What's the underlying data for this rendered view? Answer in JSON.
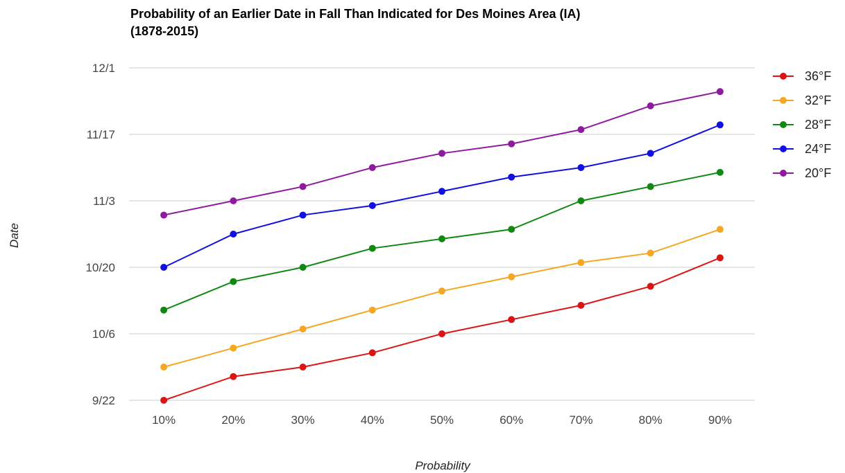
{
  "chart_data": {
    "type": "line",
    "title": "Probability of an Earlier Date in Fall Than Indicated for Des Moines Area (IA)",
    "subtitle": "(1878-2015)",
    "xlabel": "Probability",
    "ylabel": "Date",
    "categories": [
      "10%",
      "20%",
      "30%",
      "40%",
      "50%",
      "60%",
      "70%",
      "80%",
      "90%"
    ],
    "y_ticks": [
      "9/22",
      "10/6",
      "10/20",
      "11/3",
      "11/17",
      "12/1"
    ],
    "ylim": [
      "9/22",
      "12/1"
    ],
    "grid": true,
    "legend_position": "right",
    "series": [
      {
        "name": "36°F",
        "color": "#dc1414",
        "values": [
          "9/22",
          "9/27",
          "9/29",
          "10/2",
          "10/6",
          "10/9",
          "10/12",
          "10/16",
          "10/22"
        ]
      },
      {
        "name": "32°F",
        "color": "#f5a623",
        "values": [
          "9/29",
          "10/3",
          "10/7",
          "10/11",
          "10/15",
          "10/18",
          "10/21",
          "10/23",
          "10/28"
        ]
      },
      {
        "name": "28°F",
        "color": "#118811",
        "values": [
          "10/11",
          "10/17",
          "10/20",
          "10/24",
          "10/26",
          "10/28",
          "11/3",
          "11/6",
          "11/9"
        ]
      },
      {
        "name": "24°F",
        "color": "#1010e0",
        "values": [
          "10/20",
          "10/27",
          "10/31",
          "11/2",
          "11/5",
          "11/8",
          "11/10",
          "11/13",
          "11/19"
        ]
      },
      {
        "name": "20°F",
        "color": "#8e1a9e",
        "values": [
          "10/31",
          "11/3",
          "11/6",
          "11/10",
          "11/13",
          "11/15",
          "11/18",
          "11/23",
          "11/26"
        ]
      }
    ]
  }
}
